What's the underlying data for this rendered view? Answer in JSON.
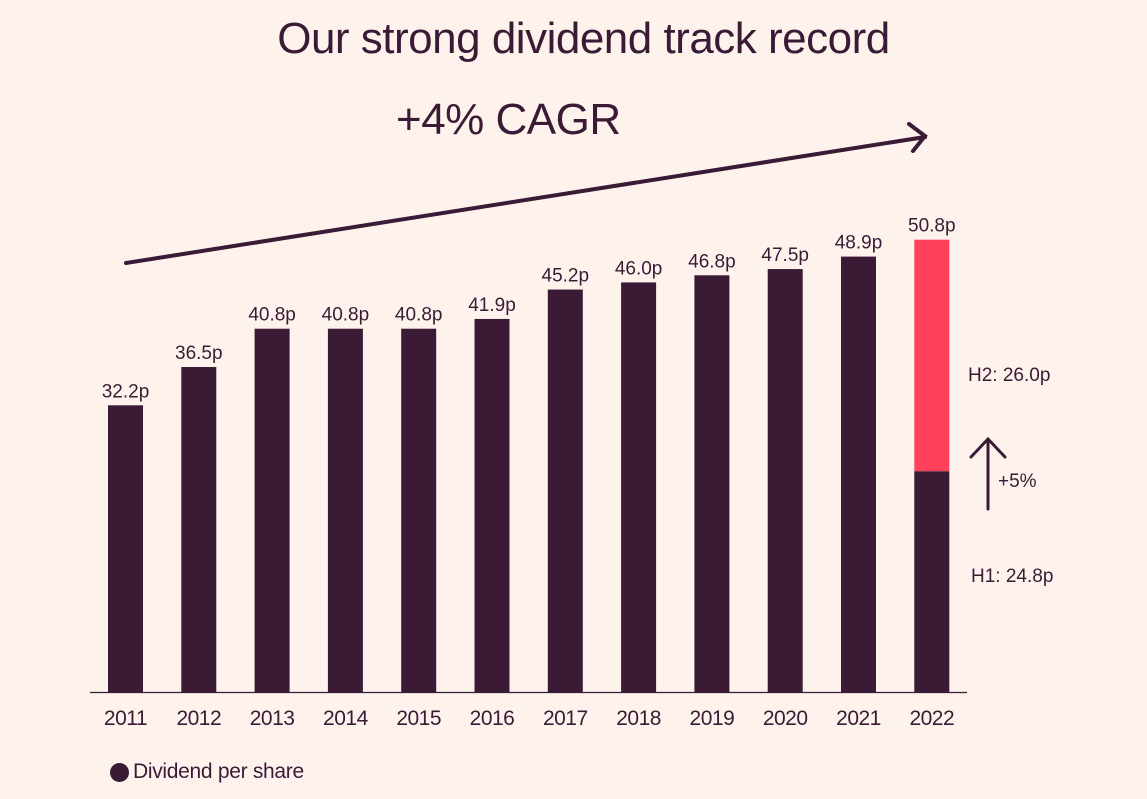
{
  "title": "Our strong dividend track record",
  "cagr_label": "+4% CAGR",
  "legend": {
    "label": "Dividend per share"
  },
  "colors": {
    "background": "#fdf3ec",
    "bar": "#3a1a35",
    "highlight": "#fe4159",
    "text": "#3a1a35"
  },
  "chart_data": {
    "type": "bar",
    "title": "Our strong dividend track record",
    "xlabel": "",
    "ylabel": "",
    "ylim": [
      0,
      52
    ],
    "grid": false,
    "legend_position": "bottom-left",
    "categories": [
      "2011",
      "2012",
      "2013",
      "2014",
      "2015",
      "2016",
      "2017",
      "2018",
      "2019",
      "2020",
      "2021",
      "2022"
    ],
    "series": [
      {
        "name": "Dividend per share",
        "values": [
          32.2,
          36.5,
          40.8,
          40.8,
          40.8,
          41.9,
          45.2,
          46.0,
          46.8,
          47.5,
          48.9,
          50.8
        ],
        "labels": [
          "32.2p",
          "36.5p",
          "40.8p",
          "40.8p",
          "40.8p",
          "41.9p",
          "45.2p",
          "46.0p",
          "46.8p",
          "47.5p",
          "48.9p",
          "50.8p"
        ]
      }
    ],
    "stacked_breakdown": {
      "category": "2022",
      "segments": [
        {
          "name": "H1",
          "value": 24.8,
          "label": "H1: 24.8p",
          "color": "#3a1a35"
        },
        {
          "name": "H2",
          "value": 26.0,
          "label": "H2: 26.0p",
          "color": "#fe4159"
        }
      ],
      "growth_annotation": "+5%"
    },
    "annotations": [
      {
        "text": "+4% CAGR",
        "type": "trend-arrow",
        "from": "2011",
        "to": "2022"
      }
    ]
  }
}
